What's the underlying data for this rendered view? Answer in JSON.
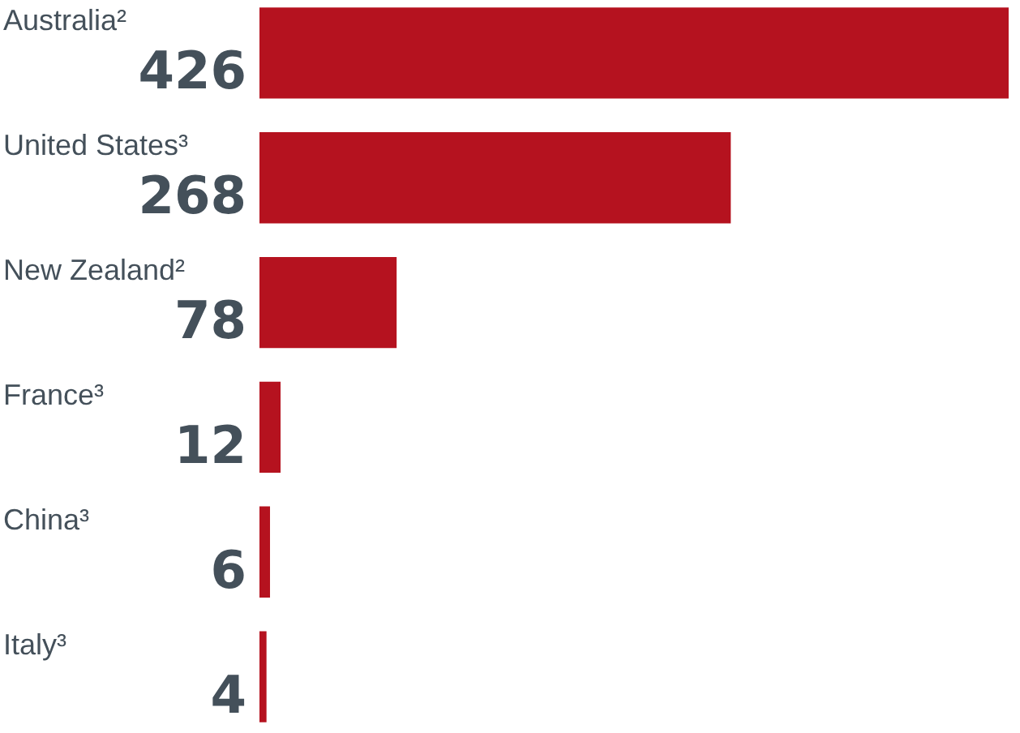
{
  "chart_data": {
    "type": "bar",
    "orientation": "horizontal",
    "categories": [
      "Australia²",
      "United States³",
      "New Zealand²",
      "France³",
      "China³",
      "Italy³"
    ],
    "values": [
      426,
      268,
      78,
      12,
      6,
      4
    ],
    "color": "#b5121f",
    "data_labels": true
  }
}
